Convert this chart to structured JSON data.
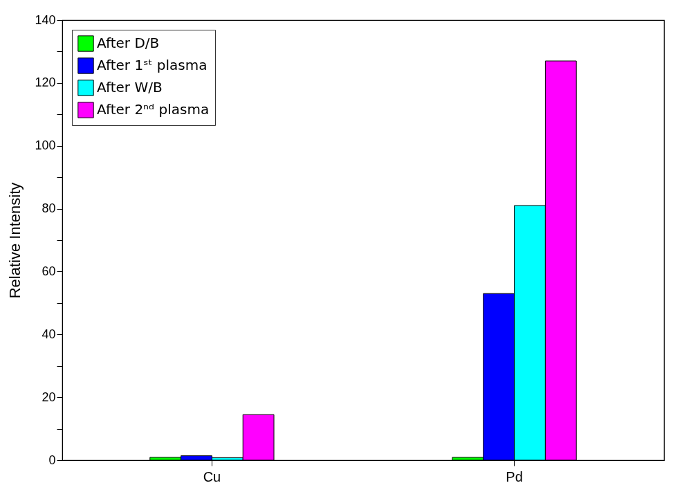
{
  "chart_data": {
    "type": "bar",
    "ylabel": "Relative Intensity",
    "categories": [
      "Cu",
      "Pd"
    ],
    "series": [
      {
        "name": "After D/B",
        "color": "#00ff00",
        "values": [
          0.9,
          0.9
        ]
      },
      {
        "name": "After 1ˢᵗ plasma",
        "color": "#0000ff",
        "values": [
          1.4,
          53
        ]
      },
      {
        "name": "After W/B",
        "color": "#00ffff",
        "values": [
          0.8,
          81
        ]
      },
      {
        "name": "After 2ⁿᵈ plasma",
        "color": "#ff00ff",
        "values": [
          14.5,
          127
        ]
      }
    ],
    "ylim": [
      0,
      140
    ],
    "yticks": [
      0,
      {
        "value": 10,
        "label": null
      },
      20,
      {
        "value": 30,
        "label": null
      },
      40,
      {
        "value": 50,
        "label": null
      },
      60,
      {
        "value": 70,
        "label": null
      },
      80,
      {
        "value": 90,
        "label": null
      },
      100,
      {
        "value": 110,
        "label": null
      },
      120,
      {
        "value": 130,
        "label": null
      },
      140
    ],
    "grid": false,
    "legend": "top left"
  }
}
